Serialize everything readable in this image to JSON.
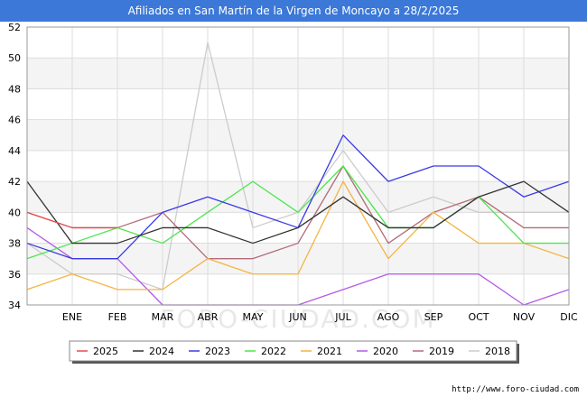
{
  "chart_data": {
    "type": "line",
    "title": "Afiliados en San Martín de la Virgen de Moncayo a 28/2/2025",
    "categories": [
      "",
      "ENE",
      "FEB",
      "MAR",
      "ABR",
      "MAY",
      "JUN",
      "JUL",
      "AGO",
      "SEP",
      "OCT",
      "NOV",
      "DIC"
    ],
    "ylim": [
      34,
      52
    ],
    "yticks": [
      34,
      36,
      38,
      40,
      42,
      44,
      46,
      48,
      50,
      52
    ],
    "xlabel": "",
    "ylabel": "",
    "grid": true,
    "legend_position": "bottom",
    "series": [
      {
        "name": "2018",
        "color": "#cccccc",
        "values": [
          38,
          36,
          36,
          35,
          51,
          39,
          40,
          44,
          40,
          41,
          40,
          40,
          40
        ]
      },
      {
        "name": "2019",
        "color": "#b36a78",
        "values": [
          40,
          39,
          39,
          40,
          37,
          37,
          38,
          43,
          38,
          40,
          41,
          39,
          39
        ]
      },
      {
        "name": "2020",
        "color": "#b45ae6",
        "values": [
          39,
          37,
          37,
          34,
          34,
          34,
          34,
          35,
          36,
          36,
          36,
          34,
          35
        ]
      },
      {
        "name": "2021",
        "color": "#f5b342",
        "values": [
          35,
          36,
          35,
          35,
          37,
          36,
          36,
          42,
          37,
          40,
          38,
          38,
          37
        ]
      },
      {
        "name": "2022",
        "color": "#4ce64c",
        "values": [
          37,
          38,
          39,
          38,
          40,
          42,
          40,
          43,
          39,
          39,
          41,
          38,
          38
        ]
      },
      {
        "name": "2023",
        "color": "#3a3ae6",
        "values": [
          38,
          37,
          37,
          40,
          41,
          40,
          39,
          45,
          42,
          43,
          43,
          41,
          42
        ]
      },
      {
        "name": "2024",
        "color": "#333333",
        "values": [
          42,
          38,
          38,
          39,
          39,
          38,
          39,
          41,
          39,
          39,
          41,
          42,
          40
        ]
      },
      {
        "name": "2025",
        "color": "#e64c4c",
        "values": [
          40,
          39,
          39,
          null,
          null,
          null,
          null,
          null,
          null,
          null,
          null,
          null,
          null
        ]
      }
    ],
    "legend_order": [
      "2025",
      "2024",
      "2023",
      "2022",
      "2021",
      "2020",
      "2019",
      "2018"
    ]
  },
  "watermark": "FORO-CIUDAD.COM",
  "footer": "http://www.foro-ciudad.com"
}
